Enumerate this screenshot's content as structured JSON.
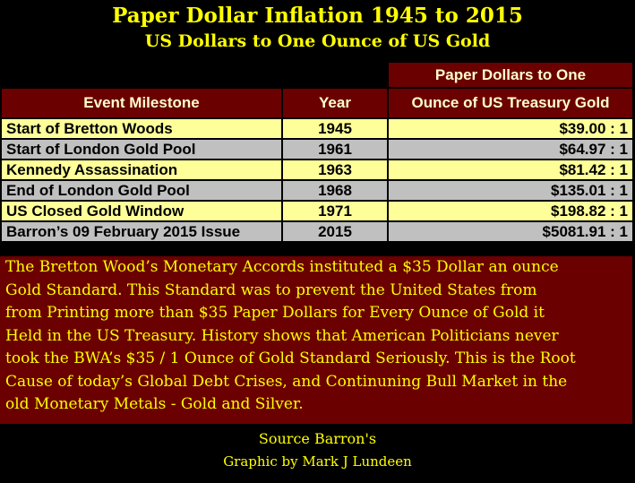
{
  "title": "Paper Dollar Inflation 1945 to 2015",
  "subtitle": "US Dollars to One Ounce of US Gold",
  "chart_data": {
    "type": "table",
    "columns": [
      "Event Milestone",
      "Year",
      "Paper Dollars to One",
      "Ounce of US Treasury Gold"
    ],
    "rows": [
      {
        "event": "Start of Bretton Woods",
        "year": "1945",
        "ratio": "$39.00 : 1"
      },
      {
        "event": "Start of London Gold Pool",
        "year": "1961",
        "ratio": "$64.97 : 1"
      },
      {
        "event": "Kennedy Assassination",
        "year": "1963",
        "ratio": "$81.42 : 1"
      },
      {
        "event": "End of London Gold Pool",
        "year": "1968",
        "ratio": "$135.01 : 1"
      },
      {
        "event": "US Closed Gold Window",
        "year": "1971",
        "ratio": "$198.82 : 1"
      },
      {
        "event": "Barron’s 09 February 2015 Issue",
        "year": "2015",
        "ratio": "$5081.91 : 1"
      }
    ]
  },
  "note_lines": [
    "The Bretton Wood’s Monetary Accords instituted a $35 Dollar an ounce",
    "Gold Standard.  This Standard was to prevent the United States from",
    "from Printing more than $35 Paper Dollars for Every Ounce of Gold it",
    "Held in the US Treasury. History shows that American Politicians never",
    "took the BWA’s $35 / 1 Ounce of Gold Standard Seriously.  This is the Root",
    "Cause of today’s Global Debt Crises, and Continuning Bull Market in the",
    "old Monetary Metals - Gold and Silver."
  ],
  "source": "Source Barron's",
  "credit": "Graphic by Mark J Lundeen",
  "colors": {
    "header_bg": "#6b0000",
    "title_text": "#ffff00",
    "row_yellow": "#ffff99",
    "row_gray": "#c0c0c0"
  }
}
